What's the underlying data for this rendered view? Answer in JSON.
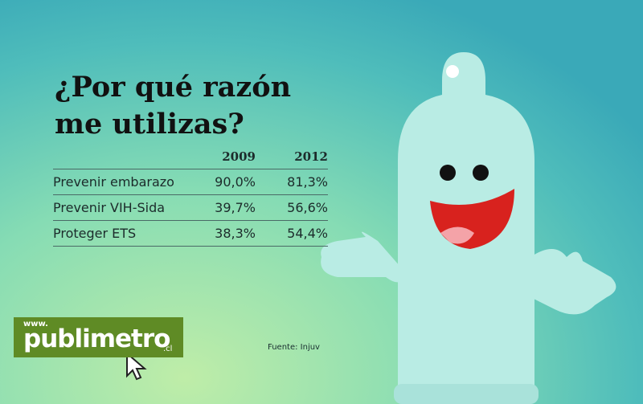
{
  "title": "¿Por qué razón me utilizas?",
  "table": {
    "columns": [
      "2009",
      "2012"
    ],
    "rows": [
      [
        "Prevenir embarazo",
        "90,0%",
        "81,3%"
      ],
      [
        "Prevenir VIH-Sida",
        "39,7%",
        "56,6%"
      ],
      [
        "Proteger ETS",
        "38,3%",
        "54,4%"
      ]
    ]
  },
  "source": "Fuente: Injuv",
  "logo": {
    "prefix": "www.",
    "name": "publimetro",
    "suffix": ".cl"
  }
}
